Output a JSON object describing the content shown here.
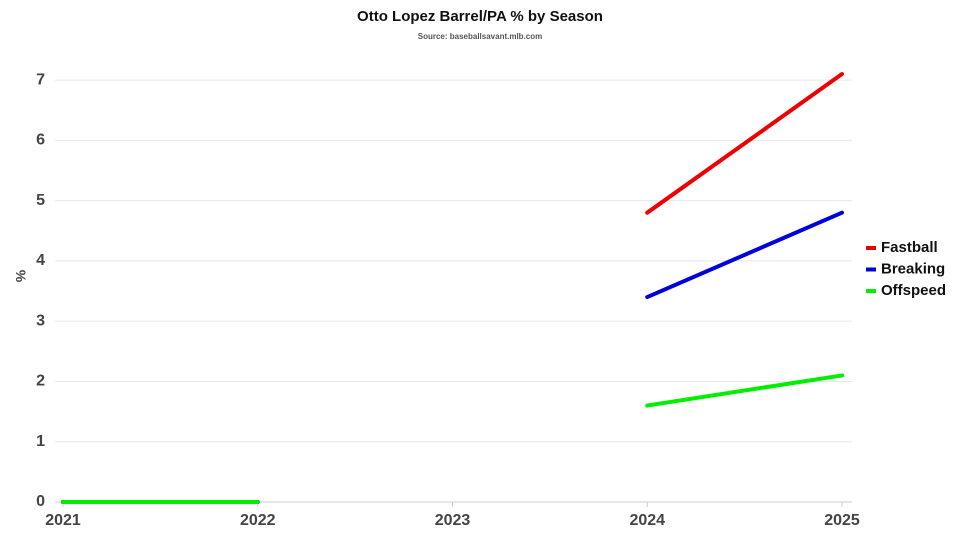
{
  "chart_data": {
    "type": "line",
    "title": "Otto Lopez Barrel/PA % by Season",
    "subtitle": "Source: baseballsavant.mlb.com",
    "y_label": "%",
    "x": [
      2021,
      2022,
      2023,
      2024,
      2025
    ],
    "series": [
      {
        "name": "Fastball",
        "color": "#ee0000",
        "values": [
          0,
          0,
          null,
          4.8,
          7.1
        ]
      },
      {
        "name": "Breaking",
        "color": "#0000dd",
        "values": [
          0,
          0,
          null,
          3.4,
          4.8
        ]
      },
      {
        "name": "Offspeed",
        "color": "#00ee00",
        "values": [
          0,
          0,
          null,
          1.6,
          2.1
        ]
      }
    ],
    "xlim": [
      2021,
      2025
    ],
    "xticks": [
      2021,
      2022,
      2023,
      2024,
      2025
    ],
    "ylim": [
      0,
      7.3
    ],
    "yticks": [
      0,
      1,
      2,
      3,
      4,
      5,
      6,
      7
    ],
    "grid": true,
    "legend": "right"
  }
}
